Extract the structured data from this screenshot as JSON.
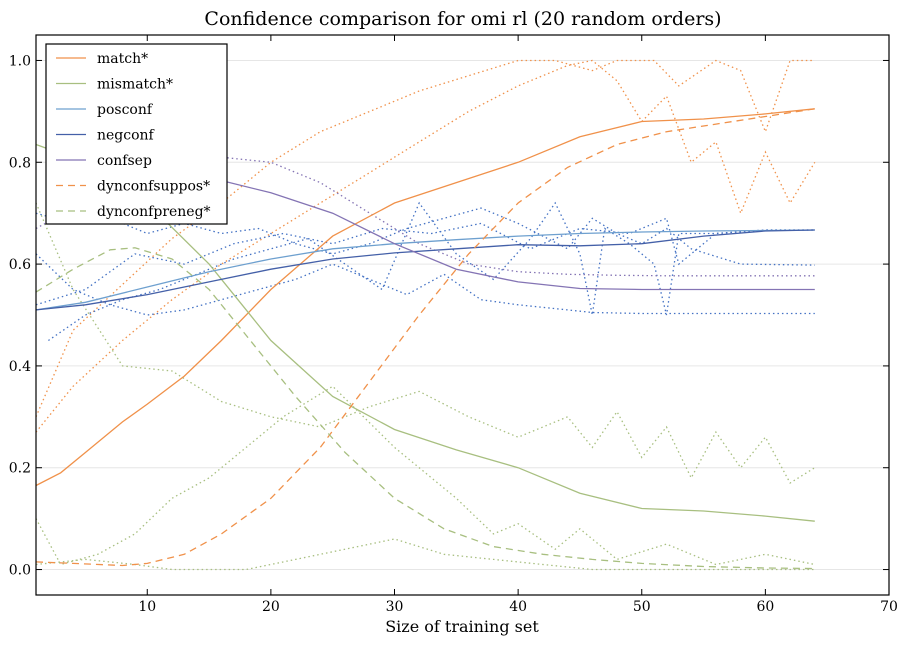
{
  "chart_data": {
    "type": "line",
    "title": "Confidence comparison for omi rl (20 random orders)",
    "xlabel": "Size of training set",
    "ylabel": "",
    "xlim": [
      1,
      70
    ],
    "ylim": [
      -0.05,
      1.05
    ],
    "xticks": [
      10,
      20,
      30,
      40,
      50,
      60,
      70
    ],
    "yticks": [
      0.0,
      0.2,
      0.4,
      0.6,
      0.8,
      1.0
    ],
    "ytick_labels": [
      "0.0",
      "0.2",
      "0.4",
      "0.6",
      "0.8",
      "1.0"
    ],
    "grid": "horizontal",
    "legend_position": "top-left",
    "series": [
      {
        "name": "match*",
        "color": "#f0914a",
        "style": "solid",
        "x": [
          1,
          3,
          5,
          8,
          10,
          13,
          16,
          20,
          25,
          30,
          35,
          40,
          45,
          50,
          55,
          60,
          64
        ],
        "y": [
          0.165,
          0.19,
          0.23,
          0.29,
          0.325,
          0.38,
          0.45,
          0.55,
          0.655,
          0.72,
          0.76,
          0.8,
          0.85,
          0.88,
          0.885,
          0.895,
          0.905
        ]
      },
      {
        "name": "mismatch*",
        "color": "#a8bf80",
        "style": "solid",
        "x": [
          1,
          5,
          10,
          15,
          20,
          25,
          30,
          35,
          40,
          45,
          50,
          55,
          60,
          64
        ],
        "y": [
          0.835,
          0.8,
          0.72,
          0.6,
          0.45,
          0.34,
          0.275,
          0.235,
          0.2,
          0.15,
          0.12,
          0.115,
          0.105,
          0.095
        ]
      },
      {
        "name": "posconf",
        "color": "#6ea0cf",
        "style": "solid",
        "x": [
          1,
          5,
          10,
          15,
          20,
          25,
          30,
          35,
          40,
          45,
          50,
          55,
          60,
          64
        ],
        "y": [
          0.51,
          0.525,
          0.555,
          0.585,
          0.61,
          0.63,
          0.64,
          0.648,
          0.655,
          0.66,
          0.663,
          0.665,
          0.666,
          0.667
        ]
      },
      {
        "name": "negconf",
        "color": "#4460a8",
        "style": "solid",
        "x": [
          1,
          5,
          10,
          15,
          20,
          25,
          30,
          35,
          40,
          45,
          50,
          55,
          60,
          64
        ],
        "y": [
          0.51,
          0.52,
          0.54,
          0.565,
          0.59,
          0.61,
          0.622,
          0.63,
          0.638,
          0.636,
          0.64,
          0.655,
          0.665,
          0.667
        ]
      },
      {
        "name": "confsep",
        "color": "#8474b4",
        "style": "solid",
        "x": [
          15,
          20,
          25,
          30,
          35,
          40,
          45,
          50,
          55,
          60,
          64
        ],
        "y": [
          0.77,
          0.74,
          0.7,
          0.64,
          0.59,
          0.565,
          0.552,
          0.55,
          0.55,
          0.55,
          0.55
        ]
      },
      {
        "name": "dynconfsuppos*",
        "color": "#f0914a",
        "style": "dashed",
        "x": [
          1,
          4,
          8,
          10,
          13,
          16,
          20,
          24,
          28,
          32,
          36,
          40,
          44,
          48,
          52,
          56,
          60,
          64
        ],
        "y": [
          0.015,
          0.012,
          0.008,
          0.012,
          0.03,
          0.07,
          0.14,
          0.24,
          0.37,
          0.5,
          0.62,
          0.72,
          0.79,
          0.835,
          0.86,
          0.875,
          0.89,
          0.905
        ]
      },
      {
        "name": "dynconfpreneg*",
        "color": "#a8bf80",
        "style": "dashed",
        "x": [
          1,
          4,
          7,
          9,
          12,
          15,
          18,
          22,
          26,
          30,
          34,
          38,
          42,
          46,
          50,
          55,
          60,
          64
        ],
        "y": [
          0.545,
          0.59,
          0.628,
          0.632,
          0.61,
          0.55,
          0.46,
          0.34,
          0.23,
          0.14,
          0.08,
          0.045,
          0.03,
          0.02,
          0.012,
          0.006,
          0.003,
          0.002
        ]
      },
      {
        "name": "",
        "color": "#f0914a",
        "style": "dotted",
        "x": [
          1,
          4,
          8,
          12,
          16,
          20,
          24,
          28,
          32,
          36,
          40,
          43,
          46,
          48,
          51,
          53,
          56,
          58,
          60,
          62,
          64
        ],
        "y": [
          0.3,
          0.47,
          0.56,
          0.65,
          0.72,
          0.8,
          0.86,
          0.9,
          0.94,
          0.97,
          1.0,
          1.0,
          0.98,
          1.0,
          1.0,
          0.95,
          1.0,
          0.98,
          0.86,
          1.0,
          1.0
        ]
      },
      {
        "name": "",
        "color": "#f0914a",
        "style": "dotted",
        "x": [
          1,
          4,
          8,
          12,
          16,
          20,
          24,
          28,
          32,
          36,
          40,
          44,
          46,
          48,
          50,
          52,
          54,
          56,
          58,
          60,
          62,
          64
        ],
        "y": [
          0.27,
          0.36,
          0.45,
          0.53,
          0.6,
          0.66,
          0.72,
          0.78,
          0.84,
          0.9,
          0.95,
          0.99,
          1.0,
          0.96,
          0.88,
          0.93,
          0.8,
          0.84,
          0.7,
          0.82,
          0.72,
          0.8
        ]
      },
      {
        "name": "",
        "color": "#a8bf80",
        "style": "dotted",
        "x": [
          1,
          4,
          8,
          12,
          16,
          20,
          24,
          28,
          32,
          36,
          40,
          44,
          46,
          48,
          50,
          52,
          54,
          56,
          58,
          60,
          62,
          64
        ],
        "y": [
          0.72,
          0.55,
          0.4,
          0.39,
          0.33,
          0.3,
          0.28,
          0.32,
          0.35,
          0.3,
          0.26,
          0.3,
          0.24,
          0.31,
          0.22,
          0.28,
          0.18,
          0.27,
          0.2,
          0.26,
          0.17,
          0.2
        ]
      },
      {
        "name": "",
        "color": "#a8bf80",
        "style": "dotted",
        "x": [
          1,
          3,
          6,
          9,
          12,
          15,
          18,
          21,
          25,
          30,
          35,
          38,
          40,
          43,
          45,
          48,
          52,
          56,
          60,
          64
        ],
        "y": [
          0.1,
          0.01,
          0.03,
          0.07,
          0.14,
          0.18,
          0.24,
          0.3,
          0.36,
          0.24,
          0.14,
          0.07,
          0.09,
          0.04,
          0.08,
          0.02,
          0.05,
          0.01,
          0.03,
          0.01
        ]
      },
      {
        "name": "",
        "color": "#a8bf80",
        "style": "dotted",
        "x": [
          1,
          5,
          9,
          12,
          15,
          18,
          22,
          26,
          30,
          34,
          38,
          42,
          46,
          50,
          55,
          60,
          64
        ],
        "y": [
          0.01,
          0.02,
          0.01,
          0.0,
          0.0,
          0.0,
          0.02,
          0.04,
          0.06,
          0.03,
          0.02,
          0.01,
          0.0,
          0.0,
          0.0,
          0.0,
          0.0
        ]
      },
      {
        "name": "",
        "color": "#4472c4",
        "style": "dotted",
        "x": [
          1,
          4,
          7,
          10,
          13,
          16,
          19,
          22,
          25,
          28,
          31,
          34,
          37,
          40,
          44,
          46,
          48,
          50,
          52,
          54,
          58,
          64
        ],
        "y": [
          0.7,
          0.68,
          0.69,
          0.66,
          0.68,
          0.66,
          0.67,
          0.64,
          0.62,
          0.64,
          0.67,
          0.69,
          0.71,
          0.68,
          0.63,
          0.69,
          0.66,
          0.64,
          0.67,
          0.63,
          0.6,
          0.598
        ]
      },
      {
        "name": "",
        "color": "#4472c4",
        "style": "dotted",
        "x": [
          1,
          4,
          7,
          10,
          13,
          16,
          19,
          22,
          25,
          28,
          31,
          34,
          37,
          40,
          44,
          46,
          48,
          50,
          52,
          54,
          58,
          64
        ],
        "y": [
          0.62,
          0.55,
          0.52,
          0.5,
          0.51,
          0.53,
          0.55,
          0.57,
          0.6,
          0.57,
          0.54,
          0.58,
          0.53,
          0.52,
          0.51,
          0.505,
          0.504,
          0.503,
          0.503,
          0.503,
          0.503,
          0.503
        ]
      },
      {
        "name": "",
        "color": "#4472c4",
        "style": "dotted",
        "x": [
          2,
          5,
          8,
          11,
          14,
          17,
          20,
          23,
          26,
          29,
          32,
          35,
          38,
          41,
          43,
          45,
          46,
          47,
          49,
          51,
          52,
          53,
          56,
          60,
          64
        ],
        "y": [
          0.45,
          0.5,
          0.53,
          0.55,
          0.58,
          0.61,
          0.63,
          0.65,
          0.6,
          0.55,
          0.72,
          0.62,
          0.57,
          0.65,
          0.72,
          0.62,
          0.5,
          0.67,
          0.64,
          0.6,
          0.5,
          0.66,
          0.66,
          0.667,
          0.667
        ]
      },
      {
        "name": "",
        "color": "#4472c4",
        "style": "dotted",
        "x": [
          1,
          5,
          9,
          13,
          17,
          21,
          25,
          29,
          33,
          37,
          41,
          45,
          49,
          52,
          53,
          56,
          60,
          64
        ],
        "y": [
          0.52,
          0.55,
          0.62,
          0.6,
          0.64,
          0.66,
          0.64,
          0.67,
          0.66,
          0.68,
          0.63,
          0.67,
          0.66,
          0.69,
          0.6,
          0.66,
          0.667,
          0.667
        ]
      },
      {
        "name": "",
        "color": "#8474b4",
        "style": "dotted",
        "x": [
          1,
          4,
          8,
          12,
          16,
          20,
          24,
          28,
          32,
          36,
          40,
          44,
          48,
          52,
          56,
          60,
          64
        ],
        "y": [
          0.67,
          0.71,
          0.76,
          0.8,
          0.81,
          0.8,
          0.76,
          0.7,
          0.64,
          0.6,
          0.585,
          0.58,
          0.578,
          0.577,
          0.577,
          0.577,
          0.577
        ]
      }
    ]
  }
}
